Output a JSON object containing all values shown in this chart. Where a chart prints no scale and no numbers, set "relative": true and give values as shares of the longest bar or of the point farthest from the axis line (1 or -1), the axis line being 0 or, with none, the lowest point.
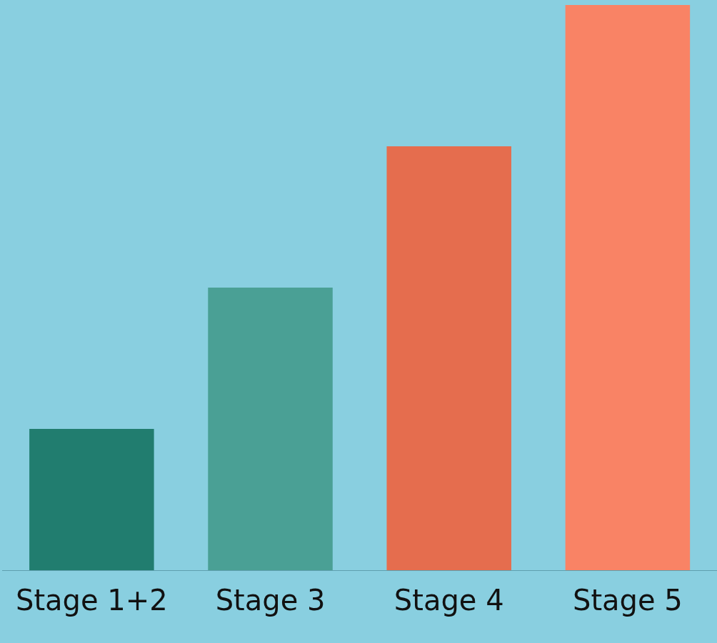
{
  "chart_data": {
    "type": "bar",
    "relative": true,
    "categories": [
      "Stage 1+2",
      "Stage 3",
      "Stage 4",
      "Stage 5"
    ],
    "values": [
      0.25,
      0.5,
      0.75,
      1
    ],
    "colors": [
      "#217d6f",
      "#4aa095",
      "#e56d4e",
      "#f98365"
    ],
    "grid": false,
    "legend": false
  }
}
